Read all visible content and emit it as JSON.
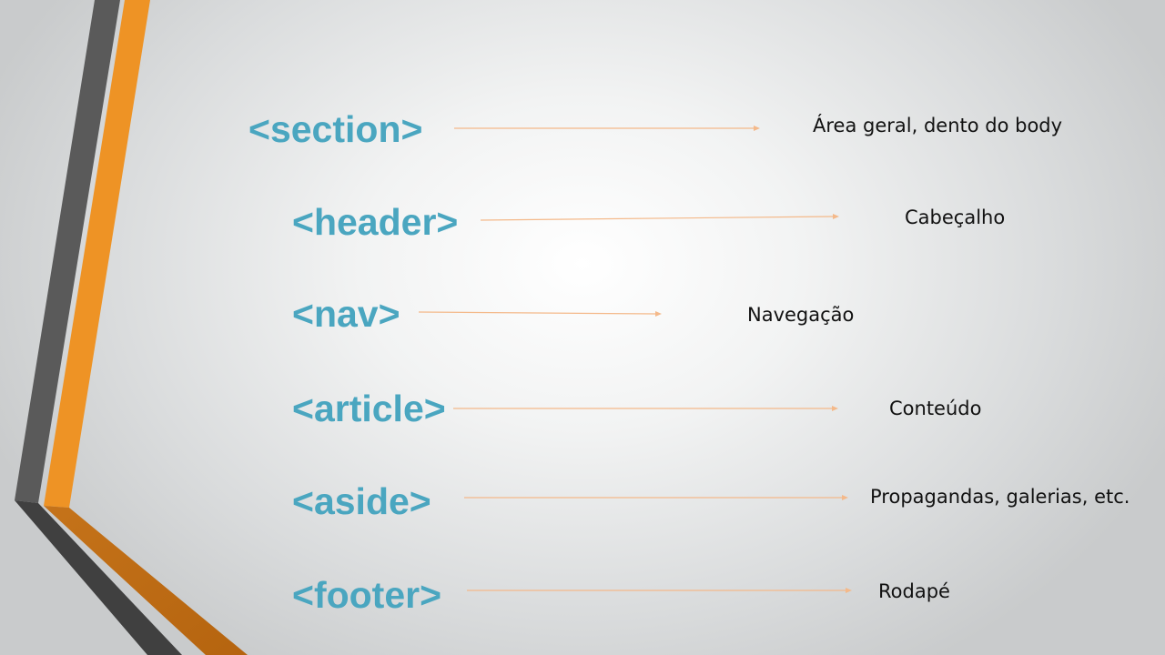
{
  "slide": {
    "accent_color": "#4aa6c0",
    "arrow_color": "#f4b98a",
    "items": [
      {
        "tag": "<section>",
        "desc": "Área geral, dento do body"
      },
      {
        "tag": "<header>",
        "desc": "Cabeçalho"
      },
      {
        "tag": "<nav>",
        "desc": "Navegação"
      },
      {
        "tag": "<article>",
        "desc": "Conteúdo"
      },
      {
        "tag": "<aside>",
        "desc": "Propagandas, galerias, etc."
      },
      {
        "tag": "<footer>",
        "desc": "Rodapé"
      }
    ]
  }
}
